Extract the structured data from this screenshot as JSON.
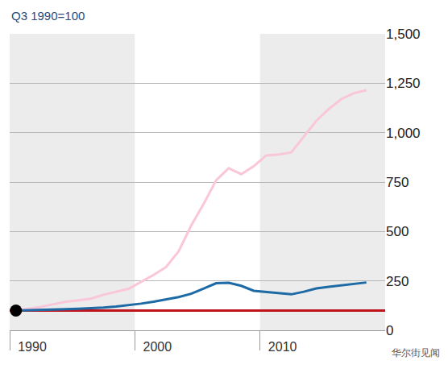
{
  "chart_data": {
    "type": "line",
    "y_label": "Q3 1990=100",
    "annotations": [
      "华尔街见闻"
    ],
    "x": [
      1990.5,
      1991.5,
      1992.5,
      1993.5,
      1994.5,
      1995.5,
      1996.5,
      1997.5,
      1998.5,
      1999.5,
      2000.5,
      2001.5,
      2002.5,
      2003.5,
      2004.5,
      2005.5,
      2006.5,
      2007.5,
      2008.5,
      2009.5,
      2010.5,
      2011.5,
      2012.5,
      2013.5,
      2014.5,
      2015.5,
      2016.5,
      2017.5,
      2018.5
    ],
    "series": [
      {
        "color": "#c0141c",
        "x": [
          1990,
          2020
        ],
        "values": [
          100,
          100
        ]
      },
      {
        "color": "#f9c6da",
        "values": [
          100,
          108,
          118,
          132,
          145,
          152,
          160,
          180,
          195,
          210,
          245,
          280,
          320,
          400,
          530,
          640,
          760,
          820,
          790,
          830,
          885,
          890,
          900,
          980,
          1060,
          1120,
          1170,
          1200,
          1215
        ]
      },
      {
        "color": "#1d6aa5",
        "values": [
          100,
          101,
          103,
          105,
          107,
          109,
          111,
          115,
          120,
          127,
          135,
          145,
          155,
          168,
          185,
          210,
          238,
          240,
          225,
          200,
          195,
          188,
          182,
          195,
          212,
          220,
          228,
          235,
          242
        ]
      },
      {
        "type": "scatter",
        "marker": "circle",
        "color": "#000000",
        "x": [
          1990.5
        ],
        "values": [
          100
        ]
      }
    ],
    "xlim": [
      1990,
      2020
    ],
    "xticks": [
      1990,
      2000,
      2010
    ],
    "ylim": [
      0,
      1500
    ],
    "yticks": [
      0,
      250,
      500,
      750,
      {
        "value": 1000,
        "label": "1,000"
      },
      {
        "value": 1250,
        "label": "1,250"
      },
      {
        "value": 1500,
        "label": "1,500"
      }
    ],
    "grid": true
  }
}
